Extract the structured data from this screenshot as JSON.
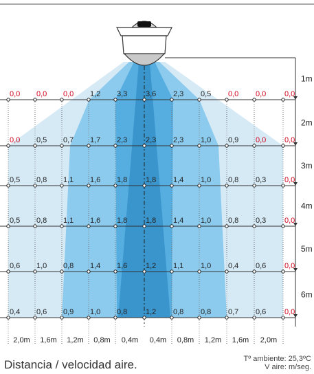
{
  "chart_data": {
    "type": "heatmap",
    "rows": [
      {
        "depth_label": "1m",
        "values": [
          "0,0",
          "0,0",
          "0,0",
          "1,2",
          "3,3",
          "3,6",
          "2,3",
          "0,5",
          "0,0",
          "0,0",
          "0,0"
        ],
        "highlight": [
          true,
          true,
          true,
          false,
          false,
          false,
          false,
          false,
          true,
          true,
          true
        ]
      },
      {
        "depth_label": "2m",
        "values": [
          "0,0",
          "0,5",
          "0,7",
          "1,7",
          "2,3",
          "2,3",
          "2,3",
          "1,0",
          "0,9",
          "0,0",
          "0,0"
        ],
        "highlight": [
          true,
          false,
          false,
          false,
          false,
          false,
          false,
          false,
          false,
          true,
          true
        ]
      },
      {
        "depth_label": "3m",
        "values": [
          "0,5",
          "0,8",
          "1,1",
          "1,6",
          "1,8",
          "1,8",
          "1,4",
          "1,0",
          "0,8",
          "0,3",
          "0,0"
        ],
        "highlight": [
          false,
          false,
          false,
          false,
          false,
          false,
          false,
          false,
          false,
          false,
          true
        ]
      },
      {
        "depth_label": "4m",
        "values": [
          "0,5",
          "0,8",
          "1,1",
          "1,6",
          "1,8",
          "1,8",
          "1,4",
          "1,0",
          "0,8",
          "0,3",
          "0,0"
        ],
        "highlight": [
          false,
          false,
          false,
          false,
          false,
          false,
          false,
          false,
          false,
          false,
          true
        ]
      },
      {
        "depth_label": "5m",
        "values": [
          "0,6",
          "1,0",
          "0,8",
          "1,4",
          "1,6",
          "1,2",
          "1,1",
          "1,0",
          "0,4",
          "0,6",
          "0,0"
        ],
        "highlight": [
          false,
          false,
          false,
          false,
          false,
          false,
          false,
          false,
          false,
          false,
          true
        ]
      },
      {
        "depth_label": "6m",
        "values": [
          "0,4",
          "0,6",
          "0,9",
          "1,0",
          "0,8",
          "1,2",
          "0,8",
          "0,8",
          "0,7",
          "0,6",
          "0,0"
        ],
        "highlight": [
          false,
          false,
          false,
          false,
          false,
          false,
          false,
          false,
          false,
          false,
          true
        ]
      }
    ],
    "distance_labels": [
      "2,0m",
      "1,6m",
      "1,2m",
      "0,8m",
      "0,4m",
      "0,4m",
      "0,8m",
      "1,2m",
      "1,6m",
      "2,0m"
    ],
    "highlight_color": "#d0021b",
    "zone_colors": [
      "#d6eaf6",
      "#8ccbee",
      "#56ade0",
      "#3a95cc"
    ]
  },
  "caption": "Distancia / velocidad aire.",
  "conditions": {
    "temperature": "Tº ambiente: 25,3ºC",
    "air_speed": "V aire: m/seg."
  }
}
